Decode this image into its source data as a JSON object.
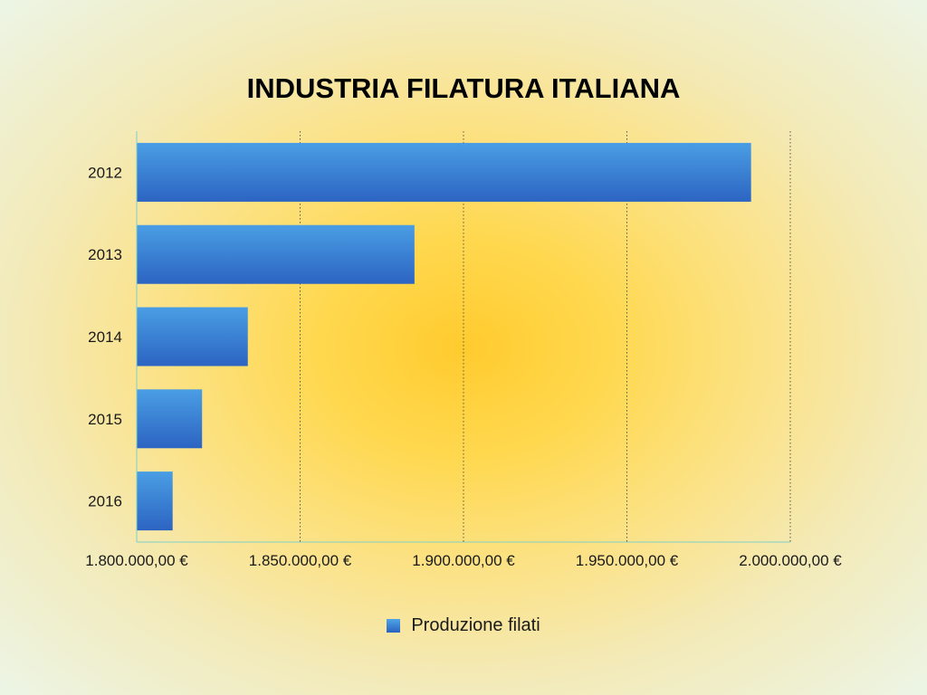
{
  "chart_data": {
    "type": "bar",
    "orientation": "horizontal",
    "title": "INDUSTRIA FILATURA ITALIANA",
    "categories": [
      "2012",
      "2013",
      "2014",
      "2015",
      "2016"
    ],
    "series": [
      {
        "name": "Produzione filati",
        "values": [
          1988000,
          1885000,
          1834000,
          1820000,
          1811000
        ],
        "color": "#3a86d8"
      }
    ],
    "xlim": [
      1800000,
      2000000
    ],
    "xticks": [
      1800000,
      1850000,
      1900000,
      1950000,
      2000000
    ],
    "xtick_labels": [
      "1.800.000,00 €",
      "1.850.000,00 €",
      "1.900.000,00 €",
      "1.950.000,00 €",
      "2.000.000,00 €"
    ],
    "grid": true,
    "legend": "bottom"
  }
}
